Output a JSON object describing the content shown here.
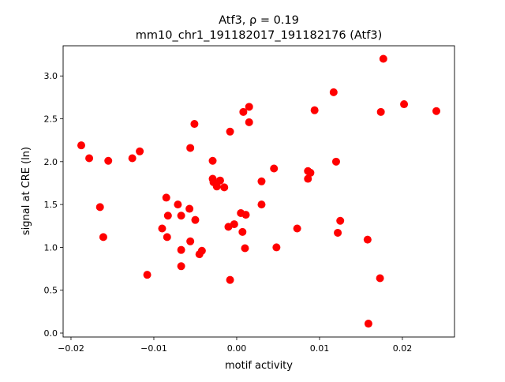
{
  "chart_data": {
    "type": "scatter",
    "title_line1": "Atf3, ρ = 0.19",
    "title_line2": "mm10_chr1_191182017_191182176 (Atf3)",
    "xlabel": "motif activity",
    "ylabel": "signal at CRE (ln)",
    "xlim": [
      -0.02095,
      0.02629
    ],
    "ylim": [
      -0.046,
      3.352
    ],
    "xticks": [
      -0.02,
      -0.01,
      0.0,
      0.01,
      0.02
    ],
    "xtick_labels": [
      "−0.02",
      "−0.01",
      "0.00",
      "0.01",
      "0.02"
    ],
    "yticks": [
      0.0,
      0.5,
      1.0,
      1.5,
      2.0,
      2.5,
      3.0
    ],
    "ytick_labels": [
      "0.0",
      "0.5",
      "1.0",
      "1.5",
      "2.0",
      "2.5",
      "3.0"
    ],
    "grid": false,
    "marker_color": "#ff0000",
    "points": [
      [
        -0.01876,
        2.19
      ],
      [
        -0.0178,
        2.04
      ],
      [
        -0.0155,
        2.01
      ],
      [
        -0.0165,
        1.47
      ],
      [
        -0.0161,
        1.12
      ],
      [
        -0.0126,
        2.04
      ],
      [
        -0.0117,
        2.12
      ],
      [
        -0.0108,
        0.68
      ],
      [
        -0.009,
        1.22
      ],
      [
        -0.0085,
        1.58
      ],
      [
        -0.0083,
        1.37
      ],
      [
        -0.0084,
        1.12
      ],
      [
        -0.0071,
        1.5
      ],
      [
        -0.0067,
        1.37
      ],
      [
        -0.0067,
        0.97
      ],
      [
        -0.0067,
        0.78
      ],
      [
        -0.0057,
        1.45
      ],
      [
        -0.0056,
        2.16
      ],
      [
        -0.0056,
        1.07
      ],
      [
        -0.0051,
        2.44
      ],
      [
        -0.005,
        1.32
      ],
      [
        -0.0045,
        0.92
      ],
      [
        -0.0042,
        0.96
      ],
      [
        -0.0029,
        2.01
      ],
      [
        -0.0029,
        1.8
      ],
      [
        -0.0028,
        1.76
      ],
      [
        -0.0024,
        1.71
      ],
      [
        -0.002,
        1.78
      ],
      [
        -0.0015,
        1.7
      ],
      [
        -0.001,
        1.24
      ],
      [
        -0.0008,
        2.35
      ],
      [
        -0.0008,
        0.62
      ],
      [
        -0.0003,
        1.27
      ],
      [
        0.0005,
        1.4
      ],
      [
        0.0007,
        1.18
      ],
      [
        0.0008,
        2.58
      ],
      [
        0.001,
        0.99
      ],
      [
        0.0011,
        1.38
      ],
      [
        0.0015,
        2.64
      ],
      [
        0.0015,
        2.46
      ],
      [
        0.003,
        1.77
      ],
      [
        0.003,
        1.5
      ],
      [
        0.0045,
        1.92
      ],
      [
        0.0048,
        1.0
      ],
      [
        0.0073,
        1.22
      ],
      [
        0.0086,
        1.89
      ],
      [
        0.0086,
        1.8
      ],
      [
        0.0089,
        1.87
      ],
      [
        0.0094,
        2.6
      ],
      [
        0.0117,
        2.81
      ],
      [
        0.012,
        2.0
      ],
      [
        0.0122,
        1.17
      ],
      [
        0.0125,
        1.31
      ],
      [
        0.0158,
        1.09
      ],
      [
        0.0159,
        0.11
      ],
      [
        0.0173,
        0.64
      ],
      [
        0.0174,
        2.58
      ],
      [
        0.0177,
        3.2
      ],
      [
        0.0202,
        2.67
      ],
      [
        0.0241,
        2.59
      ]
    ]
  }
}
